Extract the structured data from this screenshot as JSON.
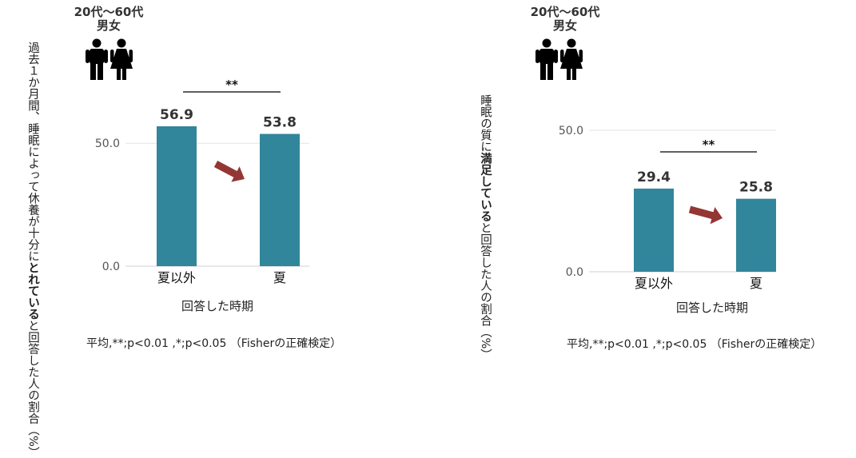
{
  "chart_data": [
    {
      "type": "bar",
      "demographic": {
        "line1": "20代～60代",
        "line2": "男女"
      },
      "ylabel_parts": [
        {
          "text": "過去１か月間、睡眠によって休養が十分に",
          "bold": false
        },
        {
          "text": "とれている",
          "bold": true
        },
        {
          "text": "と回答した人の割合（%）",
          "bold": false
        }
      ],
      "categories": [
        "夏以外",
        "夏"
      ],
      "values": [
        56.9,
        53.8
      ],
      "value_labels": [
        "56.9",
        "53.8"
      ],
      "yticks": [
        0,
        50
      ],
      "ytick_labels": [
        "0.0",
        "50.0"
      ],
      "ylim": [
        0,
        56.9
      ],
      "xlabel": "回答した時期",
      "significance": "**",
      "footnote": "平均,**;p<0.01 ,*;p<0.05 （Fisherの正確検定）",
      "colors": {
        "bar": "#31869b",
        "arrow": "#943634",
        "grid": "#e3e3e3"
      }
    },
    {
      "type": "bar",
      "demographic": {
        "line1": "20代～60代",
        "line2": "男女"
      },
      "ylabel_parts": [
        {
          "text": "睡眠の質に",
          "bold": false
        },
        {
          "text": "満足している",
          "bold": true
        },
        {
          "text": "と回答した人の割合（%）",
          "bold": false
        }
      ],
      "categories": [
        "夏以外",
        "夏"
      ],
      "values": [
        29.4,
        25.8
      ],
      "value_labels": [
        "29.4",
        "25.8"
      ],
      "yticks": [
        0,
        50
      ],
      "ytick_labels": [
        "0.0",
        "50.0"
      ],
      "ylim": [
        0,
        50
      ],
      "xlabel": "回答した時期",
      "significance": "**",
      "footnote": "平均,**;p<0.01 ,*;p<0.05 （Fisherの正確検定）",
      "colors": {
        "bar": "#31869b",
        "arrow": "#943634",
        "grid": "#e3e3e3"
      }
    }
  ]
}
